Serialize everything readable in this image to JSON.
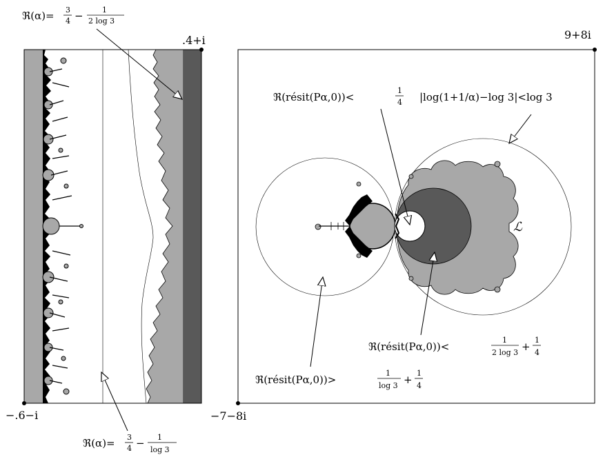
{
  "left_panel": {
    "corner_top_right": ".4+i",
    "corner_bottom_left": "−.6−i",
    "label_top": {
      "prefix": "ℜ(α)=",
      "frac1_num": "3",
      "frac1_den": "4",
      "minus": "−",
      "frac2_num": "1",
      "frac2_den": "2 log 3"
    },
    "label_bottom": {
      "prefix": "ℜ(α)=",
      "frac1_num": "3",
      "frac1_den": "4",
      "minus": "−",
      "frac2_num": "1",
      "frac2_den": "log 3"
    }
  },
  "right_panel": {
    "corner_top_right": "9+8i",
    "corner_bottom_left": "−7−8i",
    "script_L": "ℒ",
    "label_resit_lt": {
      "prefix": "ℜ(résit(Pα,0))<",
      "frac_num": "1",
      "frac_den": "4"
    },
    "label_log": "|log(1+1/α)−log 3|<log 3",
    "label_resit_gt": {
      "prefix": "ℜ(résit(Pα,0))>",
      "frac1_num": "1",
      "frac1_den": "log 3",
      "plus": "+",
      "frac2_num": "1",
      "frac2_den": "4"
    },
    "label_resit_lt2": {
      "prefix": "ℜ(résit(Pα,0))<",
      "frac1_num": "1",
      "frac1_den": "2 log 3",
      "plus": "+",
      "frac2_num": "1",
      "frac2_den": "4"
    }
  },
  "colors": {
    "light_gray": "#a8a8a8",
    "dark_gray": "#595959",
    "black": "#000000",
    "white": "#ffffff"
  }
}
